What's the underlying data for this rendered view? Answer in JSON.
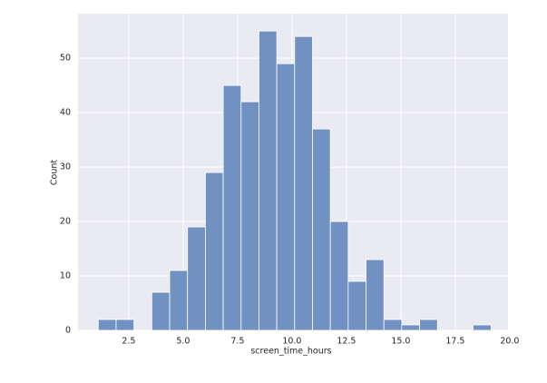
{
  "chart_data": {
    "type": "histogram",
    "x_label": "screen_time_hours",
    "y_label": "Count",
    "bins": [
      1.1,
      1.92,
      2.74,
      3.56,
      4.38,
      5.2,
      6.02,
      6.84,
      7.66,
      8.48,
      9.3,
      10.12,
      10.94,
      11.76,
      12.58,
      13.4,
      14.22,
      15.04,
      15.86,
      16.68,
      17.5,
      18.32,
      19.14
    ],
    "values": [
      2,
      2,
      0,
      7,
      11,
      19,
      29,
      45,
      42,
      55,
      49,
      54,
      37,
      20,
      9,
      13,
      2,
      1,
      2,
      0,
      0,
      1
    ],
    "color": "#7191c2",
    "xlim": [
      0.17,
      19.92
    ],
    "ylim": [
      0,
      58.2
    ],
    "xticks": [
      2.5,
      {
        "value": 5,
        "label": "5.0"
      },
      7.5,
      {
        "value": 10,
        "label": "10.0"
      },
      12.5,
      {
        "value": 15,
        "label": "15.0"
      },
      17.5,
      {
        "value": 20,
        "label": "20.0"
      }
    ],
    "yticks": [
      0,
      10,
      20,
      30,
      40,
      50
    ],
    "grid": true
  }
}
